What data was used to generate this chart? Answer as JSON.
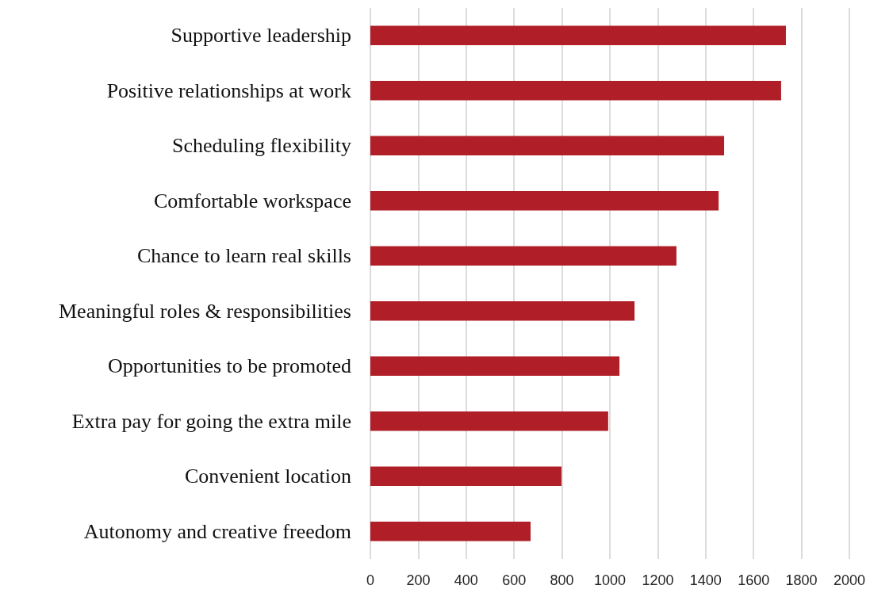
{
  "chart_data": {
    "type": "bar",
    "orientation": "horizontal",
    "categories": [
      "Supportive leadership",
      "Positive relationships at work",
      "Scheduling flexibility",
      "Comfortable workspace",
      "Chance to learn real skills",
      "Meaningful roles & responsibilities",
      "Opportunities to be promoted",
      "Extra pay for going the extra mile",
      "Convenient location",
      "Autonomy and creative freedom"
    ],
    "values": [
      1735,
      1715,
      1477,
      1454,
      1278,
      1103,
      1040,
      993,
      798,
      669
    ],
    "color": "#b01f28",
    "xlim": [
      0,
      2000
    ],
    "xticks": [
      0,
      200,
      400,
      600,
      800,
      1000,
      1200,
      1400,
      1600,
      1800,
      2000
    ],
    "grid": "x"
  }
}
